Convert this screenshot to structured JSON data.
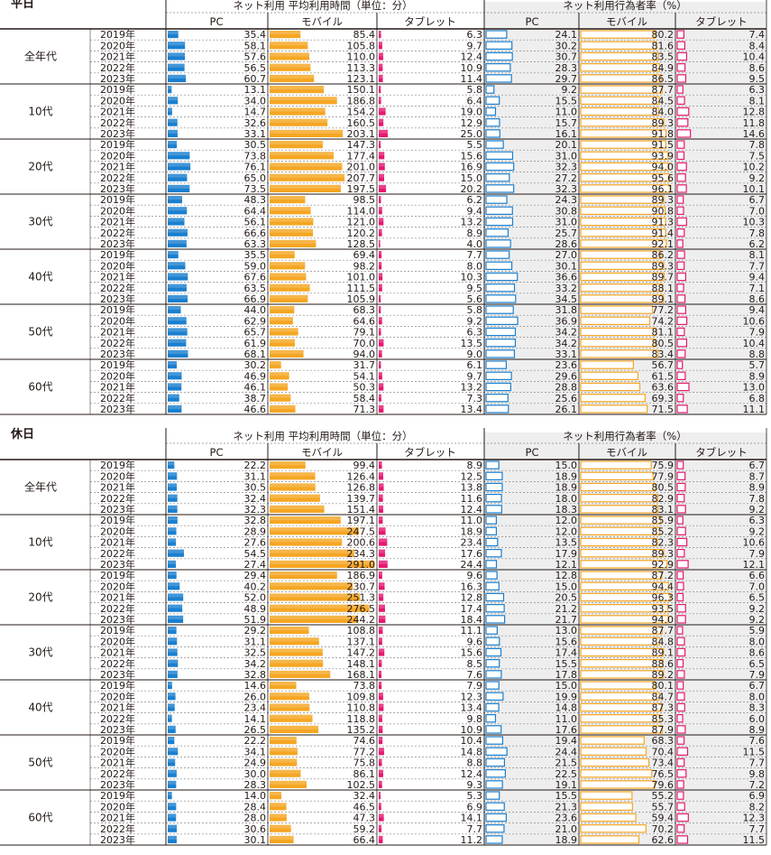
{
  "chart_data": [
    {
      "type": "table",
      "title": "平日",
      "group_headers": [
        "ネット利用 平均利用時間（単位：分）",
        "ネット利用行為者率（%）"
      ],
      "columns": [
        "PC",
        "モバイル",
        "タブレット",
        "PC",
        "モバイル",
        "タブレット"
      ],
      "years": [
        "2019年",
        "2020年",
        "2021年",
        "2022年",
        "2023年"
      ],
      "rows": [
        {
          "group": "全年代",
          "time_pc": [
            35.4,
            58.1,
            57.6,
            56.5,
            60.7
          ],
          "time_mobile": [
            85.4,
            105.8,
            110.0,
            113.3,
            123.1
          ],
          "time_tablet": [
            6.3,
            9.7,
            12.4,
            10.9,
            11.4
          ],
          "rate_pc": [
            24.1,
            30.2,
            30.7,
            28.3,
            29.7
          ],
          "rate_mobile": [
            80.2,
            81.6,
            83.5,
            84.9,
            86.5
          ],
          "rate_tablet": [
            7.4,
            8.4,
            10.4,
            8.6,
            9.5
          ]
        },
        {
          "group": "10代",
          "time_pc": [
            13.1,
            34.0,
            14.7,
            32.6,
            33.1
          ],
          "time_mobile": [
            150.1,
            186.8,
            154.2,
            160.5,
            203.1
          ],
          "time_tablet": [
            5.8,
            6.4,
            19.0,
            12.9,
            25.0
          ],
          "rate_pc": [
            9.2,
            15.5,
            11.0,
            15.7,
            16.1
          ],
          "rate_mobile": [
            87.7,
            84.5,
            84.0,
            89.3,
            91.8
          ],
          "rate_tablet": [
            6.3,
            8.1,
            12.8,
            11.8,
            14.6
          ]
        },
        {
          "group": "20代",
          "time_pc": [
            30.5,
            73.8,
            76.1,
            65.0,
            73.5
          ],
          "time_mobile": [
            147.3,
            177.4,
            201.0,
            207.7,
            197.5
          ],
          "time_tablet": [
            5.5,
            15.6,
            16.9,
            15.0,
            20.2
          ],
          "rate_pc": [
            20.1,
            31.0,
            32.3,
            27.2,
            32.3
          ],
          "rate_mobile": [
            91.5,
            93.9,
            94.0,
            95.6,
            96.1
          ],
          "rate_tablet": [
            7.8,
            7.5,
            10.2,
            9.2,
            10.1
          ]
        },
        {
          "group": "30代",
          "time_pc": [
            48.3,
            64.4,
            56.1,
            66.6,
            63.3
          ],
          "time_mobile": [
            98.5,
            114.0,
            121.0,
            120.2,
            128.5
          ],
          "time_tablet": [
            6.2,
            9.4,
            13.2,
            8.9,
            4.0
          ],
          "rate_pc": [
            24.3,
            30.8,
            31.0,
            25.7,
            28.6
          ],
          "rate_mobile": [
            89.3,
            90.8,
            91.3,
            91.4,
            92.1
          ],
          "rate_tablet": [
            6.7,
            7.0,
            10.3,
            7.8,
            6.2
          ]
        },
        {
          "group": "40代",
          "time_pc": [
            35.5,
            59.0,
            67.6,
            63.5,
            66.9
          ],
          "time_mobile": [
            69.4,
            98.2,
            101.0,
            111.5,
            105.9
          ],
          "time_tablet": [
            7.7,
            8.0,
            10.3,
            9.5,
            5.6
          ],
          "rate_pc": [
            27.0,
            30.1,
            36.6,
            33.2,
            34.5
          ],
          "rate_mobile": [
            86.2,
            89.3,
            89.7,
            88.1,
            89.1
          ],
          "rate_tablet": [
            8.1,
            7.7,
            9.4,
            7.1,
            8.6
          ]
        },
        {
          "group": "50代",
          "time_pc": [
            44.0,
            62.9,
            65.7,
            61.9,
            68.1
          ],
          "time_mobile": [
            68.3,
            64.6,
            79.1,
            70.0,
            94.0
          ],
          "time_tablet": [
            5.8,
            9.2,
            6.3,
            13.5,
            9.0
          ],
          "rate_pc": [
            31.8,
            36.9,
            34.2,
            34.2,
            33.1
          ],
          "rate_mobile": [
            77.2,
            74.2,
            81.1,
            80.5,
            83.4
          ],
          "rate_tablet": [
            9.4,
            10.6,
            7.9,
            10.4,
            8.8
          ]
        },
        {
          "group": "60代",
          "time_pc": [
            30.2,
            46.9,
            46.1,
            38.7,
            46.6
          ],
          "time_mobile": [
            31.7,
            54.1,
            50.3,
            58.4,
            71.3
          ],
          "time_tablet": [
            6.1,
            9.7,
            13.2,
            7.3,
            13.4
          ],
          "rate_pc": [
            23.6,
            29.6,
            28.8,
            25.6,
            26.1
          ],
          "rate_mobile": [
            56.7,
            61.5,
            63.6,
            69.3,
            71.5
          ],
          "rate_tablet": [
            5.7,
            8.9,
            13.0,
            6.8,
            11.1
          ]
        }
      ]
    },
    {
      "type": "table",
      "title": "休日",
      "group_headers": [
        "ネット利用 平均利用時間（単位：分）",
        "ネット利用行為者率（%）"
      ],
      "columns": [
        "PC",
        "モバイル",
        "タブレット",
        "PC",
        "モバイル",
        "タブレット"
      ],
      "years": [
        "2019年",
        "2020年",
        "2021年",
        "2022年",
        "2023年"
      ],
      "rows": [
        {
          "group": "全年代",
          "time_pc": [
            22.2,
            31.1,
            30.5,
            32.4,
            32.3
          ],
          "time_mobile": [
            99.4,
            126.4,
            126.8,
            139.7,
            151.4
          ],
          "time_tablet": [
            8.9,
            12.5,
            13.8,
            11.6,
            12.4
          ],
          "rate_pc": [
            15.0,
            18.9,
            18.9,
            18.0,
            18.3
          ],
          "rate_mobile": [
            75.9,
            77.9,
            80.5,
            82.9,
            83.1
          ],
          "rate_tablet": [
            6.7,
            8.7,
            8.9,
            7.8,
            9.2
          ]
        },
        {
          "group": "10代",
          "time_pc": [
            32.8,
            28.9,
            27.6,
            54.5,
            27.4
          ],
          "time_mobile": [
            197.1,
            247.5,
            200.6,
            234.3,
            291.0
          ],
          "time_tablet": [
            11.0,
            18.9,
            23.4,
            17.6,
            24.4
          ],
          "rate_pc": [
            12.0,
            12.0,
            13.5,
            17.9,
            12.1
          ],
          "rate_mobile": [
            85.9,
            85.2,
            82.3,
            89.3,
            92.9
          ],
          "rate_tablet": [
            6.3,
            9.2,
            10.6,
            7.9,
            12.1
          ]
        },
        {
          "group": "20代",
          "time_pc": [
            29.4,
            40.2,
            52.0,
            48.9,
            51.9
          ],
          "time_mobile": [
            186.9,
            230.7,
            251.3,
            276.5,
            244.2
          ],
          "time_tablet": [
            9.6,
            16.3,
            12.8,
            17.4,
            18.4
          ],
          "rate_pc": [
            12.8,
            15.0,
            20.5,
            21.2,
            21.7
          ],
          "rate_mobile": [
            87.2,
            94.4,
            96.3,
            93.5,
            94.0
          ],
          "rate_tablet": [
            6.6,
            7.0,
            6.5,
            9.2,
            9.2
          ]
        },
        {
          "group": "30代",
          "time_pc": [
            29.2,
            31.1,
            32.5,
            34.2,
            32.8
          ],
          "time_mobile": [
            108.8,
            137.1,
            147.2,
            148.1,
            168.1
          ],
          "time_tablet": [
            11.1,
            9.6,
            15.6,
            8.5,
            7.6
          ],
          "rate_pc": [
            13.0,
            15.6,
            17.4,
            15.5,
            17.8
          ],
          "rate_mobile": [
            87.7,
            84.8,
            89.1,
            88.6,
            89.2
          ],
          "rate_tablet": [
            5.9,
            8.0,
            8.6,
            6.5,
            7.9
          ]
        },
        {
          "group": "40代",
          "time_pc": [
            14.6,
            26.0,
            23.4,
            14.1,
            26.5
          ],
          "time_mobile": [
            73.8,
            109.8,
            110.8,
            118.8,
            135.2
          ],
          "time_tablet": [
            7.9,
            12.3,
            13.4,
            9.8,
            10.9
          ],
          "rate_pc": [
            15.0,
            19.9,
            14.8,
            11.0,
            17.6
          ],
          "rate_mobile": [
            80.1,
            84.7,
            87.3,
            85.3,
            87.9
          ],
          "rate_tablet": [
            6.7,
            8.0,
            8.3,
            6.0,
            8.9
          ]
        },
        {
          "group": "50代",
          "time_pc": [
            22.2,
            34.1,
            24.9,
            30.0,
            28.3
          ],
          "time_mobile": [
            74.6,
            77.2,
            75.8,
            86.1,
            102.5
          ],
          "time_tablet": [
            10.4,
            14.8,
            8.8,
            12.4,
            9.3
          ],
          "rate_pc": [
            19.4,
            24.4,
            21.5,
            22.5,
            19.1
          ],
          "rate_mobile": [
            68.3,
            70.4,
            73.4,
            76.5,
            79.6
          ],
          "rate_tablet": [
            7.6,
            11.5,
            7.7,
            9.8,
            7.2
          ]
        },
        {
          "group": "60代",
          "time_pc": [
            14.0,
            28.4,
            28.0,
            30.6,
            30.1
          ],
          "time_mobile": [
            32.4,
            46.5,
            47.3,
            59.2,
            66.4
          ],
          "time_tablet": [
            5.3,
            6.9,
            14.1,
            7.7,
            11.2
          ],
          "rate_pc": [
            15.5,
            21.3,
            23.6,
            21.0,
            18.9
          ],
          "rate_mobile": [
            55.2,
            55.7,
            59.4,
            70.2,
            62.6
          ],
          "rate_tablet": [
            6.9,
            8.2,
            12.3,
            7.7,
            11.5
          ]
        }
      ]
    }
  ]
}
